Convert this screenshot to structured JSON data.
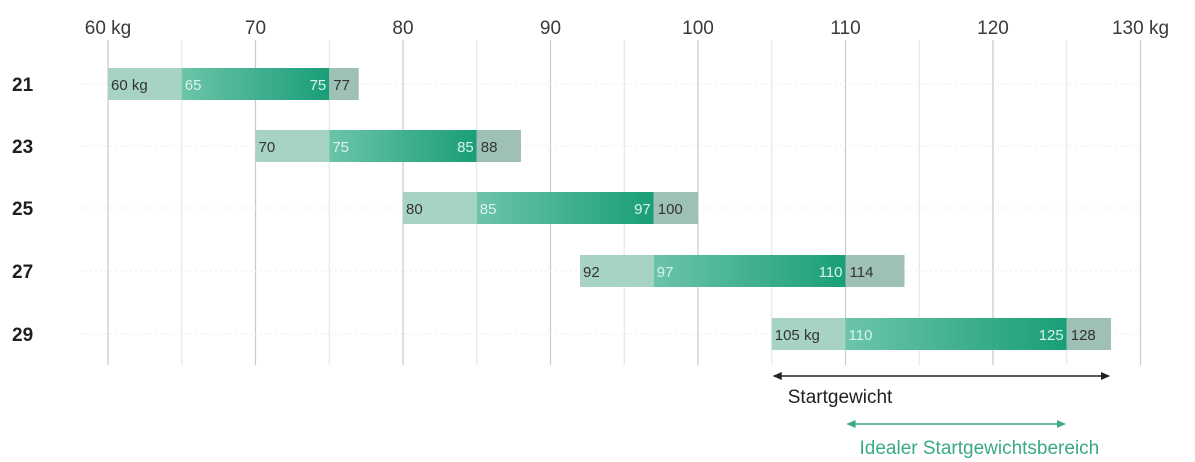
{
  "chart_data": {
    "type": "bar",
    "title": "",
    "xlabel": "",
    "ylabel": "",
    "x_ticks": [
      "60 kg",
      "70",
      "80",
      "90",
      "100",
      "110",
      "120",
      "130 kg"
    ],
    "x_tick_values": [
      60,
      70,
      80,
      90,
      100,
      110,
      120,
      130
    ],
    "xlim": [
      60,
      130
    ],
    "orientation": "horizontal",
    "categories": [
      "21",
      "23",
      "25",
      "27",
      "29"
    ],
    "rows": [
      {
        "category": "21",
        "min": 60,
        "ideal_min": 65,
        "ideal_max": 75,
        "max": 77,
        "labels": {
          "min": "60 kg",
          "ideal_min": "65",
          "ideal_max": "75",
          "max": "77"
        }
      },
      {
        "category": "23",
        "min": 70,
        "ideal_min": 75,
        "ideal_max": 85,
        "max": 88,
        "labels": {
          "min": "70",
          "ideal_min": "75",
          "ideal_max": "85",
          "max": "88"
        }
      },
      {
        "category": "25",
        "min": 80,
        "ideal_min": 85,
        "ideal_max": 97,
        "max": 100,
        "labels": {
          "min": "80",
          "ideal_min": "85",
          "ideal_max": "97",
          "max": "100"
        }
      },
      {
        "category": "27",
        "min": 92,
        "ideal_min": 97,
        "ideal_max": 110,
        "max": 114,
        "labels": {
          "min": "92",
          "ideal_min": "97",
          "ideal_max": "110",
          "max": "114"
        }
      },
      {
        "category": "29",
        "min": 105,
        "ideal_min": 110,
        "ideal_max": 125,
        "max": 128,
        "labels": {
          "min": "105 kg",
          "ideal_min": "110",
          "ideal_max": "125",
          "max": "128"
        }
      }
    ],
    "legend": [
      {
        "label": "Startgewicht",
        "from": 105,
        "to": 128,
        "color": "#222222"
      },
      {
        "label": "Idealer Startgewichtsbereich",
        "from": 110,
        "to": 125,
        "color": "#3aa889"
      }
    ],
    "colors": {
      "outer_light": "#a6d3c4",
      "ideal_gradient_start": "#6cc4a9",
      "ideal_gradient_end": "#199e78",
      "outer_dark": "#9fc0b4",
      "grid_major": "#c9c9c9",
      "grid_minor": "#e6e6e6"
    },
    "grid": true
  }
}
